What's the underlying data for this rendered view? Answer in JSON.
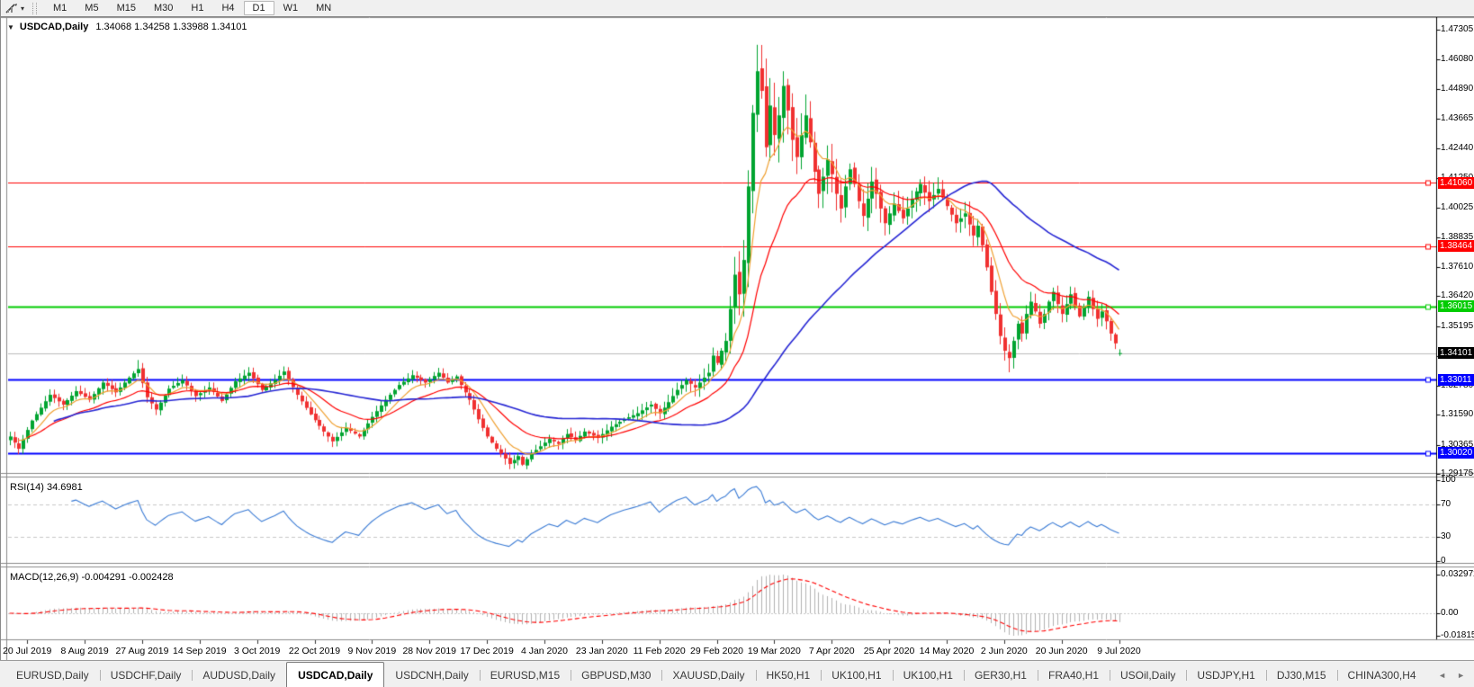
{
  "icons": {
    "chart_menu_caret": "▼",
    "toolbar_caret": "▾",
    "tab_scroll_left": "◄",
    "tab_scroll_right": "►"
  },
  "toolbar": {
    "timeframes": [
      "M1",
      "M5",
      "M15",
      "M30",
      "H1",
      "H4",
      "D1",
      "W1",
      "MN"
    ],
    "active_timeframe": "D1"
  },
  "chart": {
    "symbol_period": "USDCAD,Daily",
    "ohlc": "1.34068 1.34258 1.33988 1.34101"
  },
  "chart_data": {
    "type": "candlestick",
    "symbol": "USDCAD",
    "period": "Daily",
    "last_open": 1.34068,
    "last_high": 1.34258,
    "last_low": 1.33988,
    "last_close": 1.34101,
    "num_candles": 252,
    "price_axis": {
      "ticks": [
        "1.47305",
        "1.46080",
        "1.44890",
        "1.43665",
        "1.42440",
        "1.41250",
        "1.40025",
        "1.38835",
        "1.37610",
        "1.36420",
        "1.35195",
        "1.33970",
        "1.32780",
        "1.31590",
        "1.30365",
        "1.29175"
      ]
    },
    "levels": [
      {
        "label": "1.41060",
        "price": 1.4106,
        "color": "#FF0000",
        "width": 1
      },
      {
        "label": "1.38464",
        "price": 1.38464,
        "color": "#FF0000",
        "width": 1
      },
      {
        "label": "1.36015",
        "price": 1.36015,
        "color": "#00CC00",
        "width": 2
      },
      {
        "label": "1.33011",
        "price": 1.33011,
        "color": "#0000FF",
        "width": 2
      },
      {
        "label": "1.30020",
        "price": 1.3002,
        "color": "#0000FF",
        "width": 2
      }
    ],
    "current_price": {
      "label": "1.34101",
      "price": 1.34101,
      "badge_color": "#000000"
    },
    "x_labels": [
      "20 Jul 2019",
      "8 Aug 2019",
      "27 Aug 2019",
      "14 Sep 2019",
      "3 Oct 2019",
      "22 Oct 2019",
      "9 Nov 2019",
      "28 Nov 2019",
      "17 Dec 2019",
      "4 Jan 2020",
      "23 Jan 2020",
      "11 Feb 2020",
      "29 Feb 2020",
      "19 Mar 2020",
      "7 Apr 2020",
      "25 Apr 2020",
      "14 May 2020",
      "2 Jun 2020",
      "20 Jun 2020",
      "9 Jul 2020"
    ],
    "label_every": 13,
    "first_label_index": 4,
    "close_anchors": [
      [
        0,
        1.307
      ],
      [
        2,
        1.302
      ],
      [
        5,
        1.3135
      ],
      [
        9,
        1.324
      ],
      [
        12,
        1.32
      ],
      [
        15,
        1.3255
      ],
      [
        18,
        1.322
      ],
      [
        21,
        1.329
      ],
      [
        24,
        1.325
      ],
      [
        27,
        1.331
      ],
      [
        29,
        1.3345
      ],
      [
        31,
        1.323
      ],
      [
        33,
        1.318
      ],
      [
        36,
        1.3265
      ],
      [
        39,
        1.33
      ],
      [
        42,
        1.3235
      ],
      [
        45,
        1.327
      ],
      [
        48,
        1.3215
      ],
      [
        51,
        1.3295
      ],
      [
        54,
        1.333
      ],
      [
        57,
        1.326
      ],
      [
        60,
        1.33
      ],
      [
        62,
        1.3335
      ],
      [
        65,
        1.324
      ],
      [
        68,
        1.316
      ],
      [
        71,
        1.309
      ],
      [
        73,
        1.305
      ],
      [
        76,
        1.3105
      ],
      [
        79,
        1.307
      ],
      [
        82,
        1.315
      ],
      [
        85,
        1.322
      ],
      [
        88,
        1.328
      ],
      [
        91,
        1.332
      ],
      [
        94,
        1.329
      ],
      [
        97,
        1.333
      ],
      [
        99,
        1.329
      ],
      [
        101,
        1.3315
      ],
      [
        102,
        1.328
      ],
      [
        104,
        1.322
      ],
      [
        106,
        1.314
      ],
      [
        108,
        1.307
      ],
      [
        110,
        1.302
      ],
      [
        112,
        1.298
      ],
      [
        113,
        1.2958
      ],
      [
        115,
        1.299
      ],
      [
        116,
        1.2955
      ],
      [
        118,
        1.3
      ],
      [
        120,
        1.303
      ],
      [
        122,
        1.306
      ],
      [
        124,
        1.304
      ],
      [
        126,
        1.308
      ],
      [
        128,
        1.3055
      ],
      [
        130,
        1.309
      ],
      [
        133,
        1.3065
      ],
      [
        136,
        1.311
      ],
      [
        139,
        1.314
      ],
      [
        142,
        1.3165
      ],
      [
        145,
        1.32
      ],
      [
        147,
        1.3165
      ],
      [
        149,
        1.321
      ],
      [
        151,
        1.326
      ],
      [
        153,
        1.33
      ],
      [
        155,
        1.327
      ],
      [
        157,
        1.331
      ],
      [
        158,
        1.333
      ],
      [
        159,
        1.34
      ],
      [
        160,
        1.337
      ],
      [
        161,
        1.342
      ],
      [
        162,
        1.346
      ],
      [
        163,
        1.359
      ],
      [
        164,
        1.373
      ],
      [
        165,
        1.365
      ],
      [
        166,
        1.379
      ],
      [
        167,
        1.409
      ],
      [
        168,
        1.439
      ],
      [
        169,
        1.456
      ],
      [
        170,
        1.448
      ],
      [
        171,
        1.425
      ],
      [
        172,
        1.442
      ],
      [
        173,
        1.43
      ],
      [
        174,
        1.438
      ],
      [
        175,
        1.45
      ],
      [
        176,
        1.44
      ],
      [
        177,
        1.428
      ],
      [
        178,
        1.421
      ],
      [
        179,
        1.43
      ],
      [
        180,
        1.438
      ],
      [
        181,
        1.427
      ],
      [
        182,
        1.415
      ],
      [
        183,
        1.406
      ],
      [
        184,
        1.413
      ],
      [
        185,
        1.42
      ],
      [
        186,
        1.414
      ],
      [
        187,
        1.406
      ],
      [
        188,
        1.4
      ],
      [
        189,
        1.409
      ],
      [
        190,
        1.416
      ],
      [
        191,
        1.41
      ],
      [
        192,
        1.403
      ],
      [
        193,
        1.397
      ],
      [
        194,
        1.404
      ],
      [
        195,
        1.411
      ],
      [
        196,
        1.406
      ],
      [
        197,
        1.4
      ],
      [
        198,
        1.394
      ],
      [
        200,
        1.402
      ],
      [
        202,
        1.396
      ],
      [
        204,
        1.404
      ],
      [
        206,
        1.41
      ],
      [
        208,
        1.403
      ],
      [
        210,
        1.408
      ],
      [
        212,
        1.401
      ],
      [
        214,
        1.394
      ],
      [
        216,
        1.398
      ],
      [
        218,
        1.389
      ],
      [
        219,
        1.393
      ],
      [
        220,
        1.385
      ],
      [
        221,
        1.376
      ],
      [
        222,
        1.366
      ],
      [
        223,
        1.357
      ],
      [
        224,
        1.348
      ],
      [
        225,
        1.342
      ],
      [
        226,
        1.339
      ],
      [
        227,
        1.346
      ],
      [
        228,
        1.353
      ],
      [
        229,
        1.349
      ],
      [
        230,
        1.357
      ],
      [
        231,
        1.362
      ],
      [
        232,
        1.358
      ],
      [
        233,
        1.353
      ],
      [
        234,
        1.357
      ],
      [
        235,
        1.362
      ],
      [
        236,
        1.366
      ],
      [
        237,
        1.361
      ],
      [
        238,
        1.357
      ],
      [
        239,
        1.361
      ],
      [
        240,
        1.365
      ],
      [
        241,
        1.36
      ],
      [
        242,
        1.356
      ],
      [
        243,
        1.36
      ],
      [
        244,
        1.364
      ],
      [
        245,
        1.359
      ],
      [
        246,
        1.355
      ],
      [
        247,
        1.358
      ],
      [
        248,
        1.354
      ],
      [
        249,
        1.349
      ],
      [
        250,
        1.345
      ],
      [
        251,
        1.341
      ]
    ],
    "volatility_anchors": [
      [
        0,
        0.0028
      ],
      [
        60,
        0.003
      ],
      [
        100,
        0.0026
      ],
      [
        140,
        0.0032
      ],
      [
        158,
        0.0048
      ],
      [
        163,
        0.008
      ],
      [
        166,
        0.012
      ],
      [
        169,
        0.018
      ],
      [
        172,
        0.014
      ],
      [
        178,
        0.0115
      ],
      [
        185,
        0.0095
      ],
      [
        195,
        0.0078
      ],
      [
        205,
        0.0066
      ],
      [
        215,
        0.006
      ],
      [
        224,
        0.0058
      ],
      [
        235,
        0.0046
      ],
      [
        251,
        0.0042
      ]
    ],
    "overrides": {
      "highs": [
        [
          29,
          1.3382
        ],
        [
          169,
          1.4668
        ],
        [
          175,
          1.456
        ]
      ],
      "lows": [
        [
          112,
          1.2955
        ],
        [
          116,
          1.295
        ],
        [
          226,
          1.3332
        ]
      ],
      "last": [
        1.34068,
        1.34258,
        1.33988,
        1.34101
      ]
    },
    "colors": {
      "up": "#00A430",
      "down": "#F03030",
      "ma_fast": "#F0A030",
      "ma_mid": "#FF0000",
      "ma_slow": "#2626D4",
      "rsi": "#3A7BD5",
      "macd_hist": "#B2B2B2",
      "macd_signal": "#FF0000",
      "guide_dash": "#C8C8C8",
      "current_line": "#BBBBBB"
    },
    "moving_averages": [
      {
        "period": 8,
        "type": "EMA",
        "color_key": "ma_fast"
      },
      {
        "period": 21,
        "type": "EMA",
        "color_key": "ma_mid"
      },
      {
        "period": 55,
        "type": "SMA",
        "color_key": "ma_slow"
      }
    ],
    "rsi": {
      "label": "RSI(14) 34.6981",
      "period": 14,
      "value": 34.6981,
      "ticks": [
        {
          "label": "100",
          "value": 100
        },
        {
          "label": "70",
          "value": 70
        },
        {
          "label": "30",
          "value": 30
        },
        {
          "label": "0",
          "value": 0
        }
      ],
      "guide_levels": [
        70,
        30
      ]
    },
    "macd": {
      "label": "MACD(12,26,9) -0.004291 -0.002428",
      "fast": 12,
      "slow": 26,
      "signal": 9,
      "macd_value": -0.004291,
      "signal_value": -0.002428,
      "ticks": [
        {
          "label": "0.032972",
          "pos": "max"
        },
        {
          "label": "0.00",
          "pos": "zero"
        },
        {
          "label": "-0.01815",
          "pos": "min"
        }
      ]
    }
  },
  "tabs": {
    "items": [
      "EURUSD,Daily",
      "USDCHF,Daily",
      "AUDUSD,Daily",
      "USDCAD,Daily",
      "USDCNH,Daily",
      "EURUSD,M15",
      "GBPUSD,M30",
      "XAUUSD,Daily",
      "HK50,H1",
      "UK100,H1",
      "UK100,H1",
      "GER30,H1",
      "FRA40,H1",
      "USOil,Daily",
      "USDJPY,H1",
      "DJ30,M15",
      "CHINA300,H4"
    ],
    "active_index": 3
  }
}
